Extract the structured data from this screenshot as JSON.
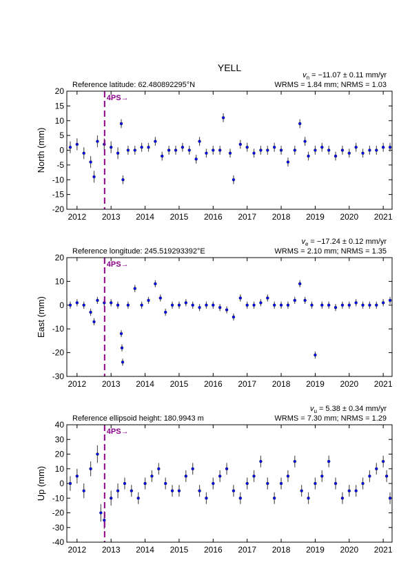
{
  "title": "YELL",
  "chart_data": [
    {
      "type": "scatter",
      "velocity_symbol": "v",
      "velocity_subscript": "n",
      "velocity_text": "= −11.07 ± 0.11 mm/yr",
      "stats": "WRMS = 1.84 mm; NRMS = 1.03",
      "reference": "Reference latitude: 62.480892295°N",
      "y_label": "North (mm)",
      "xlim": [
        2011.7,
        2021.26
      ],
      "ylim": [
        -20,
        20
      ],
      "xticks": [
        2012,
        2013,
        2014,
        2015,
        2016,
        2017,
        2018,
        2019,
        2020,
        2021
      ],
      "yticks": [
        -20,
        -15,
        -10,
        -5,
        0,
        5,
        10,
        15,
        20
      ],
      "event": {
        "x": 2012.81,
        "label": "4PS→",
        "color": "#8b008b"
      },
      "marker_color": "#0000ff",
      "error_color": "#555555",
      "x": [
        2011.8,
        2012.0,
        2012.2,
        2012.4,
        2012.5,
        2012.6,
        2012.8,
        2013.0,
        2013.2,
        2013.3,
        2013.35,
        2013.5,
        2013.7,
        2013.9,
        2014.1,
        2014.3,
        2014.5,
        2014.7,
        2014.9,
        2015.1,
        2015.3,
        2015.5,
        2015.6,
        2015.8,
        2016.0,
        2016.2,
        2016.3,
        2016.5,
        2016.6,
        2016.8,
        2017.0,
        2017.2,
        2017.4,
        2017.6,
        2017.8,
        2018.0,
        2018.2,
        2018.4,
        2018.55,
        2018.7,
        2018.8,
        2019.0,
        2019.2,
        2019.4,
        2019.6,
        2019.8,
        2020.0,
        2020.2,
        2020.4,
        2020.6,
        2020.8,
        2021.0,
        2021.2
      ],
      "values": [
        1,
        2,
        -1,
        -4,
        -9,
        3,
        2,
        1,
        -1,
        9,
        -10,
        0,
        0,
        1,
        1,
        3,
        -2,
        0,
        0,
        1,
        0,
        -3,
        3,
        -1,
        0,
        0,
        11,
        -1,
        -10,
        2,
        1,
        -1,
        0,
        0,
        1,
        0,
        -4,
        0,
        9,
        3,
        -2,
        0,
        1,
        0,
        -2,
        0,
        -1,
        1,
        -1,
        0,
        0,
        1,
        1
      ],
      "errors": [
        2,
        2,
        2,
        2,
        2,
        2,
        2,
        2,
        2,
        1.5,
        1.5,
        1.5,
        1.5,
        1.5,
        1.5,
        1.5,
        1.5,
        1.5,
        1.5,
        1.5,
        1.5,
        1.5,
        1.5,
        1.5,
        1.5,
        1.5,
        1.5,
        1.5,
        1.5,
        1.5,
        1.5,
        1.5,
        1.5,
        1.5,
        1.5,
        1.5,
        1.5,
        1.5,
        1.5,
        1.5,
        1.5,
        1.5,
        1.5,
        1.5,
        1.5,
        1.5,
        1.5,
        1.5,
        1.5,
        1.5,
        1.5,
        1.5,
        1.5
      ]
    },
    {
      "type": "scatter",
      "velocity_symbol": "v",
      "velocity_subscript": "e",
      "velocity_text": "= −17.24 ± 0.12 mm/yr",
      "stats": "WRMS = 2.10 mm; NRMS = 1.35",
      "reference": "Reference longitude: 245.519293392°E",
      "y_label": "East (mm)",
      "xlim": [
        2011.7,
        2021.26
      ],
      "ylim": [
        -30,
        20
      ],
      "xticks": [
        2012,
        2013,
        2014,
        2015,
        2016,
        2017,
        2018,
        2019,
        2020,
        2021
      ],
      "yticks": [
        -30,
        -20,
        -10,
        0,
        10,
        20
      ],
      "event": {
        "x": 2012.81,
        "label": "4PS→",
        "color": "#8b008b"
      },
      "marker_color": "#0000ff",
      "error_color": "#555555",
      "x": [
        2011.8,
        2012.0,
        2012.2,
        2012.4,
        2012.5,
        2012.6,
        2012.8,
        2013.0,
        2013.2,
        2013.3,
        2013.32,
        2013.34,
        2013.5,
        2013.7,
        2013.9,
        2014.1,
        2014.3,
        2014.45,
        2014.6,
        2014.8,
        2015.0,
        2015.2,
        2015.4,
        2015.6,
        2015.8,
        2016.0,
        2016.2,
        2016.4,
        2016.6,
        2016.8,
        2017.0,
        2017.2,
        2017.4,
        2017.6,
        2017.8,
        2018.0,
        2018.2,
        2018.4,
        2018.55,
        2018.7,
        2018.9,
        2019.0,
        2019.2,
        2019.4,
        2019.6,
        2019.8,
        2020.0,
        2020.2,
        2020.4,
        2020.6,
        2020.8,
        2021.0,
        2021.2
      ],
      "values": [
        0,
        1,
        0,
        -3,
        -7,
        2,
        1,
        1,
        0,
        -12,
        -18,
        -24,
        0,
        7,
        0,
        2,
        9,
        3,
        -3,
        0,
        0,
        1,
        0,
        -1,
        0,
        0,
        -1,
        -2,
        -5,
        3,
        0,
        0,
        1,
        3,
        0,
        0,
        0,
        2,
        9,
        2,
        0,
        -21,
        0,
        0,
        -1,
        0,
        0,
        1,
        0,
        0,
        0,
        1,
        2
      ],
      "errors": [
        1.5,
        1.5,
        1.5,
        1.5,
        1.5,
        1.5,
        1.5,
        1.5,
        1.5,
        1.5,
        1.5,
        1.5,
        1.5,
        1.5,
        1.5,
        1.5,
        1.5,
        1.5,
        1.5,
        1.5,
        1.5,
        1.5,
        1.5,
        1.5,
        1.5,
        1.5,
        1.5,
        1.5,
        1.5,
        1.5,
        1.5,
        1.5,
        1.5,
        1.5,
        1.5,
        1.5,
        1.5,
        1.5,
        1.5,
        1.5,
        1.5,
        1.5,
        1.5,
        1.5,
        1.5,
        1.5,
        1.5,
        1.5,
        1.5,
        1.5,
        1.5,
        1.5,
        1.5
      ]
    },
    {
      "type": "scatter",
      "velocity_symbol": "v",
      "velocity_subscript": "u",
      "velocity_text": "= 5.38 ± 0.34 mm/yr",
      "stats": "WRMS = 7.30 mm; NRMS = 1.29",
      "reference": "Reference ellipsoid height: 180.9943 m",
      "y_label": "Up (mm)",
      "xlim": [
        2011.7,
        2021.26
      ],
      "ylim": [
        -40,
        40
      ],
      "xticks": [
        2012,
        2013,
        2014,
        2015,
        2016,
        2017,
        2018,
        2019,
        2020,
        2021
      ],
      "yticks": [
        -40,
        -30,
        -20,
        -10,
        0,
        10,
        20,
        30,
        40
      ],
      "event": {
        "x": 2012.81,
        "label": "4PS→",
        "color": "#8b008b"
      },
      "marker_color": "#0000ff",
      "error_color": "#555555",
      "x": [
        2011.8,
        2012.0,
        2012.2,
        2012.4,
        2012.6,
        2012.7,
        2012.8,
        2013.0,
        2013.2,
        2013.4,
        2013.6,
        2013.8,
        2014.0,
        2014.2,
        2014.4,
        2014.6,
        2014.8,
        2015.0,
        2015.2,
        2015.4,
        2015.6,
        2015.8,
        2016.0,
        2016.2,
        2016.4,
        2016.6,
        2016.8,
        2017.0,
        2017.2,
        2017.4,
        2017.6,
        2017.8,
        2018.0,
        2018.2,
        2018.4,
        2018.6,
        2018.8,
        2019.0,
        2019.2,
        2019.4,
        2019.6,
        2019.8,
        2020.0,
        2020.2,
        2020.4,
        2020.6,
        2020.8,
        2021.0,
        2021.1,
        2021.2
      ],
      "values": [
        0,
        5,
        -5,
        10,
        20,
        -20,
        -25,
        -10,
        -5,
        0,
        -5,
        -10,
        0,
        5,
        10,
        0,
        -5,
        -5,
        5,
        10,
        -5,
        -10,
        0,
        5,
        10,
        -5,
        -10,
        0,
        5,
        15,
        0,
        -10,
        0,
        5,
        15,
        -5,
        -10,
        0,
        5,
        15,
        0,
        -10,
        -5,
        -5,
        0,
        5,
        10,
        15,
        5,
        -10
      ],
      "errors": [
        5,
        5,
        5,
        5,
        6,
        6,
        6,
        5,
        5,
        4,
        4,
        4,
        4,
        4,
        4,
        4,
        4,
        4,
        4,
        4,
        4,
        4,
        4,
        4,
        4,
        4,
        4,
        4,
        4,
        4,
        4,
        4,
        4,
        4,
        4,
        4,
        4,
        4,
        4,
        4,
        4,
        4,
        4,
        4,
        4,
        4,
        4,
        4,
        4,
        4
      ]
    }
  ]
}
